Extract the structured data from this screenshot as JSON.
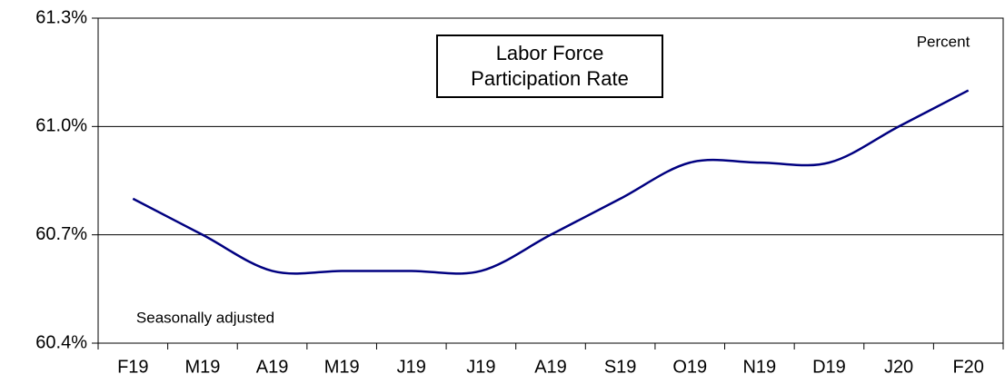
{
  "chart_data": {
    "type": "line",
    "title": "Labor Force Participation Rate",
    "annotations": [
      "Percent",
      "Seasonally adjusted"
    ],
    "categories": [
      "F19",
      "M19",
      "A19",
      "M19",
      "J19",
      "J19",
      "A19",
      "S19",
      "O19",
      "N19",
      "D19",
      "J20",
      "F20"
    ],
    "series": [
      {
        "color": "#000080",
        "values": [
          60.8,
          60.7,
          60.6,
          60.6,
          60.6,
          60.6,
          60.7,
          60.8,
          60.9,
          60.9,
          60.9,
          61.0,
          61.1
        ]
      }
    ],
    "ylim": [
      60.4,
      61.3
    ],
    "yticks": [
      {
        "value": 60.4,
        "label": "60.4%"
      },
      {
        "value": 60.7,
        "label": "60.7%"
      },
      {
        "value": 61.0,
        "label": "61.0%"
      },
      {
        "value": 61.3,
        "label": "61.3%"
      }
    ],
    "grid": true
  }
}
